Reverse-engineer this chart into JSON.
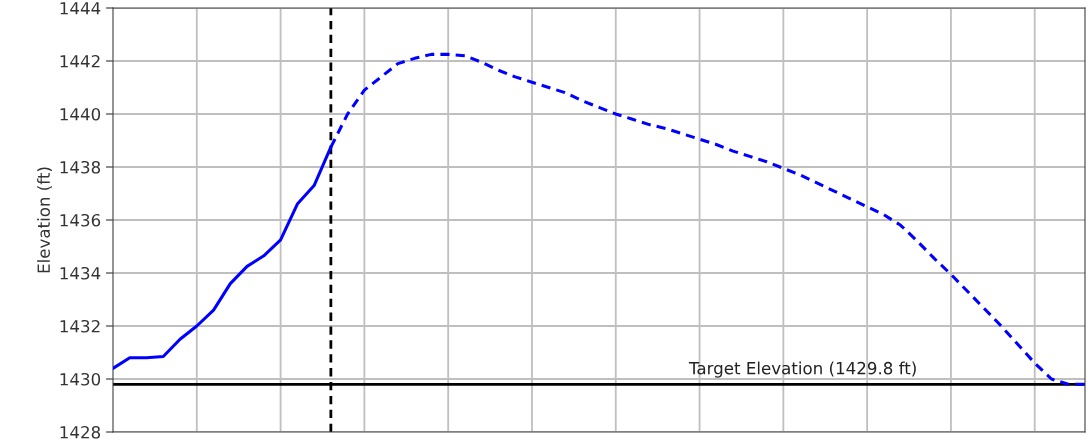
{
  "chart_data": {
    "type": "line",
    "ylabel": "Elevation (ft)",
    "categories": [
      null,
      null,
      null,
      null,
      null,
      null,
      null,
      null,
      null,
      null,
      null,
      null,
      null,
      null,
      null,
      null,
      null,
      null,
      null,
      null,
      null,
      null,
      null,
      null,
      null,
      null,
      null,
      null,
      null,
      null,
      null,
      null,
      null,
      null,
      null,
      null,
      null,
      null,
      null,
      null,
      null,
      null,
      null,
      null,
      null,
      null,
      null,
      null,
      null,
      null,
      null,
      null,
      null,
      null,
      null,
      null,
      null,
      null,
      null
    ],
    "ylim": [
      1428,
      1444
    ],
    "yticks": [
      1428,
      1430,
      1432,
      1434,
      1436,
      1438,
      1440,
      1442,
      1444
    ],
    "tick_labels": "y",
    "grid": true,
    "series": [
      {
        "color": "#0000ff",
        "line_style": "solid",
        "values": [
          1430.4,
          1430.8,
          1430.8,
          1430.85,
          1431.5,
          1432.0,
          1432.6,
          1433.6,
          1434.25,
          1434.65,
          1435.25,
          1436.6,
          1437.3,
          1438.75,
          null,
          null,
          null,
          null,
          null,
          null,
          null,
          null,
          null,
          null,
          null,
          null,
          null,
          null,
          null,
          null,
          null,
          null,
          null,
          null,
          null,
          null,
          null,
          null,
          null,
          null,
          null,
          null,
          null,
          null,
          null,
          null,
          null,
          null,
          null,
          null,
          null,
          null,
          null,
          null,
          null,
          null,
          null,
          null,
          null
        ]
      },
      {
        "color": "#0000ff",
        "line_style": "dashed",
        "values": [
          null,
          null,
          null,
          null,
          null,
          null,
          null,
          null,
          null,
          null,
          null,
          null,
          null,
          1438.75,
          1440.0,
          1440.9,
          1441.4,
          1441.9,
          1442.1,
          1442.25,
          1442.25,
          1442.2,
          1441.95,
          1441.65,
          1441.4,
          1441.2,
          1441.0,
          1440.8,
          1440.5,
          1440.25,
          1440.0,
          1439.8,
          1439.6,
          1439.45,
          1439.25,
          1439.05,
          1438.85,
          1438.6,
          1438.4,
          1438.2,
          1437.95,
          1437.7,
          1437.4,
          1437.1,
          1436.8,
          1436.5,
          1436.2,
          1435.8,
          1435.2,
          1434.55,
          1433.95,
          1433.3,
          1432.65,
          1432.0,
          1431.3,
          1430.6,
          1430.0,
          1429.8,
          1429.8
        ]
      }
    ],
    "ref_lines": [
      {
        "axis": "y",
        "value": 1429.8,
        "label": "Target Elevation (1429.8 ft)",
        "color": "#000000",
        "line_style": "solid"
      }
    ]
  }
}
